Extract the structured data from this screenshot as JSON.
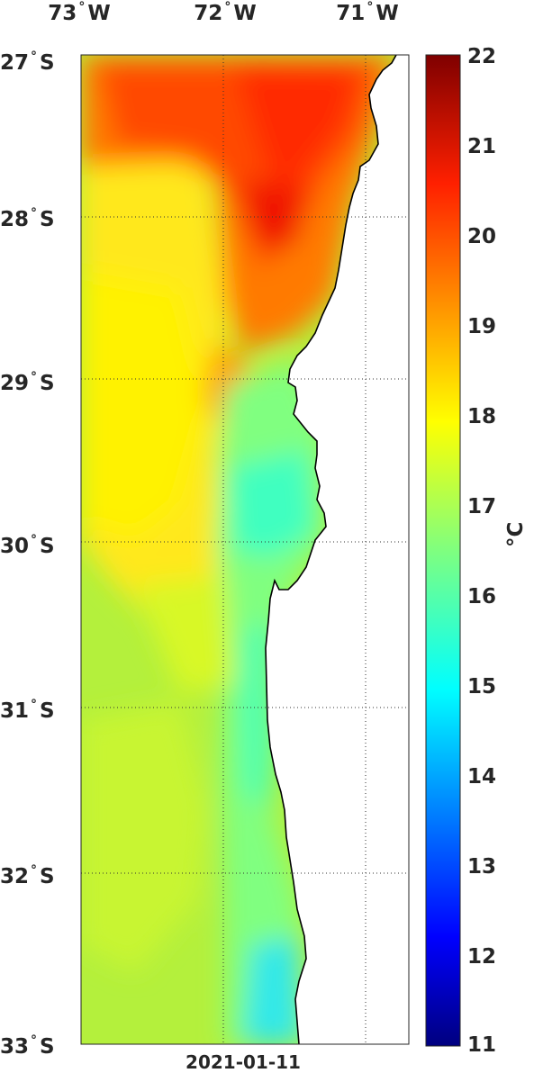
{
  "map": {
    "lon_labels": [
      "73",
      "72",
      "71"
    ],
    "lon_suffix": "W",
    "lat_labels": [
      "27",
      "28",
      "29",
      "30",
      "31",
      "32",
      "33"
    ],
    "lat_suffix": "S",
    "lon_range": [
      -73,
      -70.7
    ],
    "lat_range": [
      -33,
      -27
    ],
    "grid": "dotted",
    "land_color": "#ffffff",
    "coast_color": "#000000"
  },
  "colorbar": {
    "ticks": [
      "22",
      "21",
      "20",
      "19",
      "18",
      "17",
      "16",
      "15",
      "14",
      "13",
      "12",
      "11"
    ],
    "min": 11,
    "max": 22,
    "colormap": "jet",
    "unit_symbol": "°C",
    "placement": "right"
  },
  "date": "2021-01-11"
}
